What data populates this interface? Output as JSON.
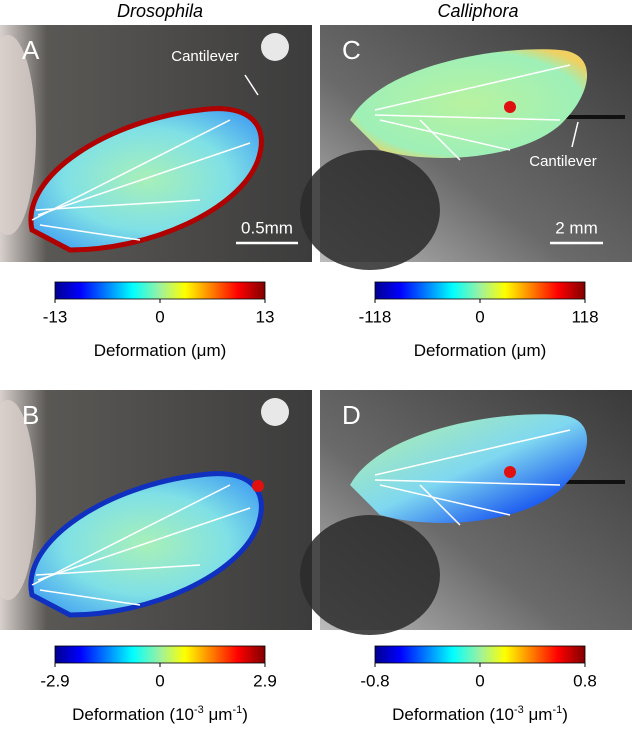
{
  "column_titles": [
    "Drosophila",
    "Calliphora"
  ],
  "panels": [
    {
      "letter": "A",
      "annotation": "Cantilever",
      "scale_bar": "0.5mm",
      "colorbar": {
        "ticks": [
          -13,
          0,
          13
        ],
        "label": [
          {
            "text": "Deformation (μm)"
          }
        ]
      }
    },
    {
      "letter": "C",
      "annotation": "Cantilever",
      "scale_bar": "2 mm",
      "colorbar": {
        "ticks": [
          -118,
          0,
          118
        ],
        "label": [
          {
            "text": "Deformation (μm)"
          }
        ]
      }
    },
    {
      "letter": "B",
      "colorbar": {
        "ticks": [
          -2.9,
          0,
          2.9
        ],
        "label": [
          {
            "text": "Deformation (10"
          },
          {
            "sup": "-3"
          },
          {
            "text": " μm"
          },
          {
            "sup": "-1"
          },
          {
            "text": ")"
          }
        ]
      }
    },
    {
      "letter": "D",
      "colorbar": {
        "ticks": [
          -0.8,
          0,
          0.8
        ],
        "label": [
          {
            "text": "Deformation (10"
          },
          {
            "sup": "-3"
          },
          {
            "text": " μm"
          },
          {
            "sup": "-1"
          },
          {
            "text": ")"
          }
        ]
      }
    }
  ]
}
